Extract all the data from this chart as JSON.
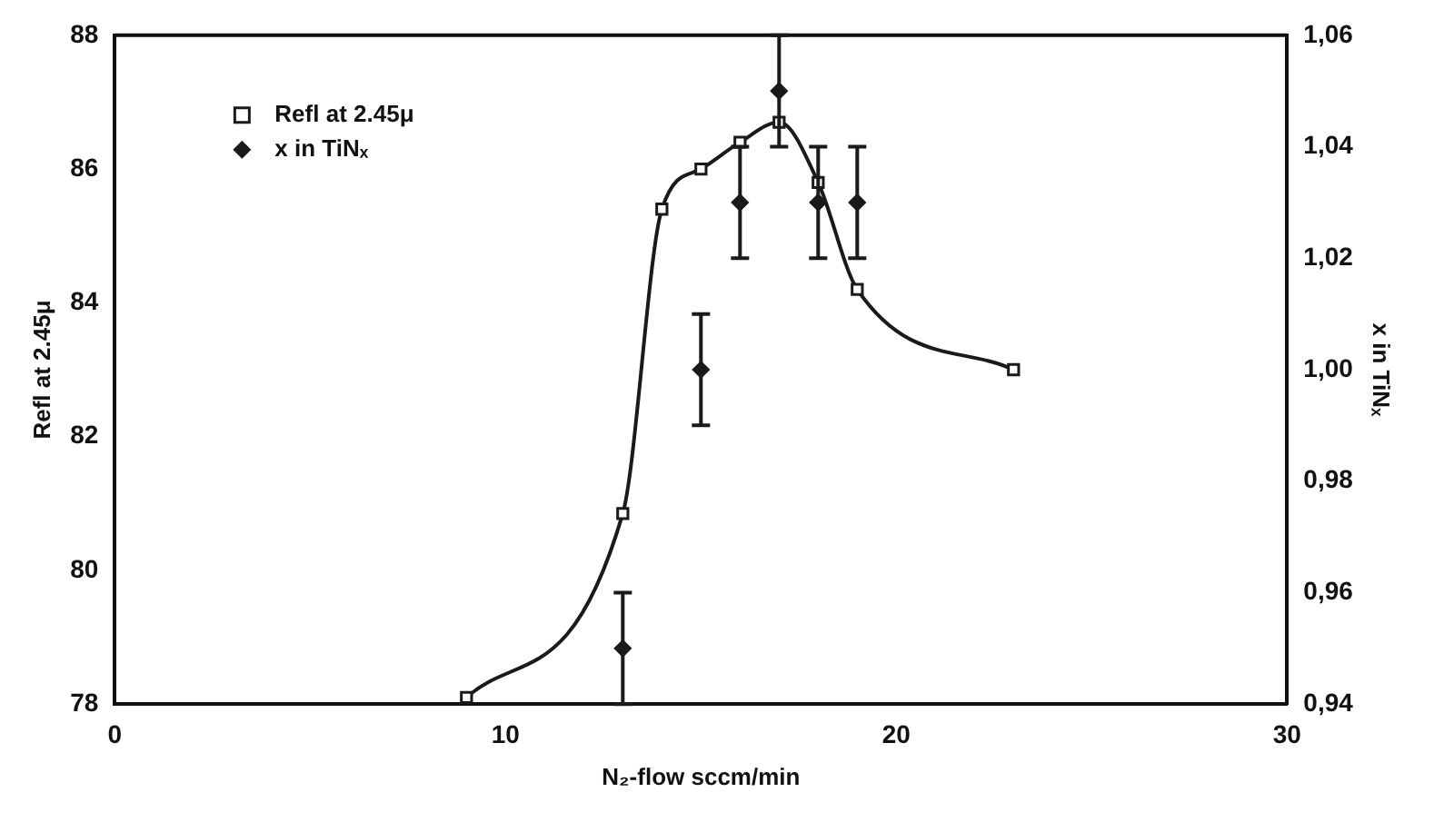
{
  "chart_data": {
    "type": "line",
    "xlabel": "N₂-flow sccm/min",
    "ylabel": "Refl at 2.45μ",
    "y2label": "x in TiNₓ",
    "xlim": [
      0,
      30
    ],
    "xticks": [
      0,
      10,
      20,
      30
    ],
    "ylim": [
      78,
      88
    ],
    "yticks": [
      78,
      80,
      82,
      84,
      86,
      88
    ],
    "y2lim": [
      0.94,
      1.06
    ],
    "y2ticks": [
      {
        "value": 0.94,
        "label": "0,94"
      },
      {
        "value": 0.96,
        "label": "0,96"
      },
      {
        "value": 0.98,
        "label": "0,98"
      },
      {
        "value": 1.0,
        "label": "1,00"
      },
      {
        "value": 1.02,
        "label": "1,02"
      },
      {
        "value": 1.04,
        "label": "1,04"
      },
      {
        "value": 1.06,
        "label": "1,06"
      }
    ],
    "grid": false,
    "legend": "top left",
    "series": [
      {
        "name": "Refl at 2.45μ",
        "marker": "square",
        "color": "#1a1a1a",
        "x": [
          9,
          13,
          14,
          15,
          16,
          17,
          18,
          19,
          23
        ],
        "values": [
          78.1,
          80.85,
          85.4,
          86.0,
          86.4,
          86.7,
          85.8,
          84.2,
          83.0
        ]
      },
      {
        "name": "x in TiNₓ",
        "type": "scatter",
        "axis": "y2",
        "marker": "diamond",
        "color": "#1a1a1a",
        "x": [
          13,
          15,
          16,
          17,
          18,
          19
        ],
        "values": [
          0.95,
          1.0,
          1.03,
          1.05,
          1.03,
          1.03
        ],
        "errors": [
          0.01,
          0.01,
          0.01,
          0.01,
          0.01,
          0.01
        ]
      }
    ]
  }
}
